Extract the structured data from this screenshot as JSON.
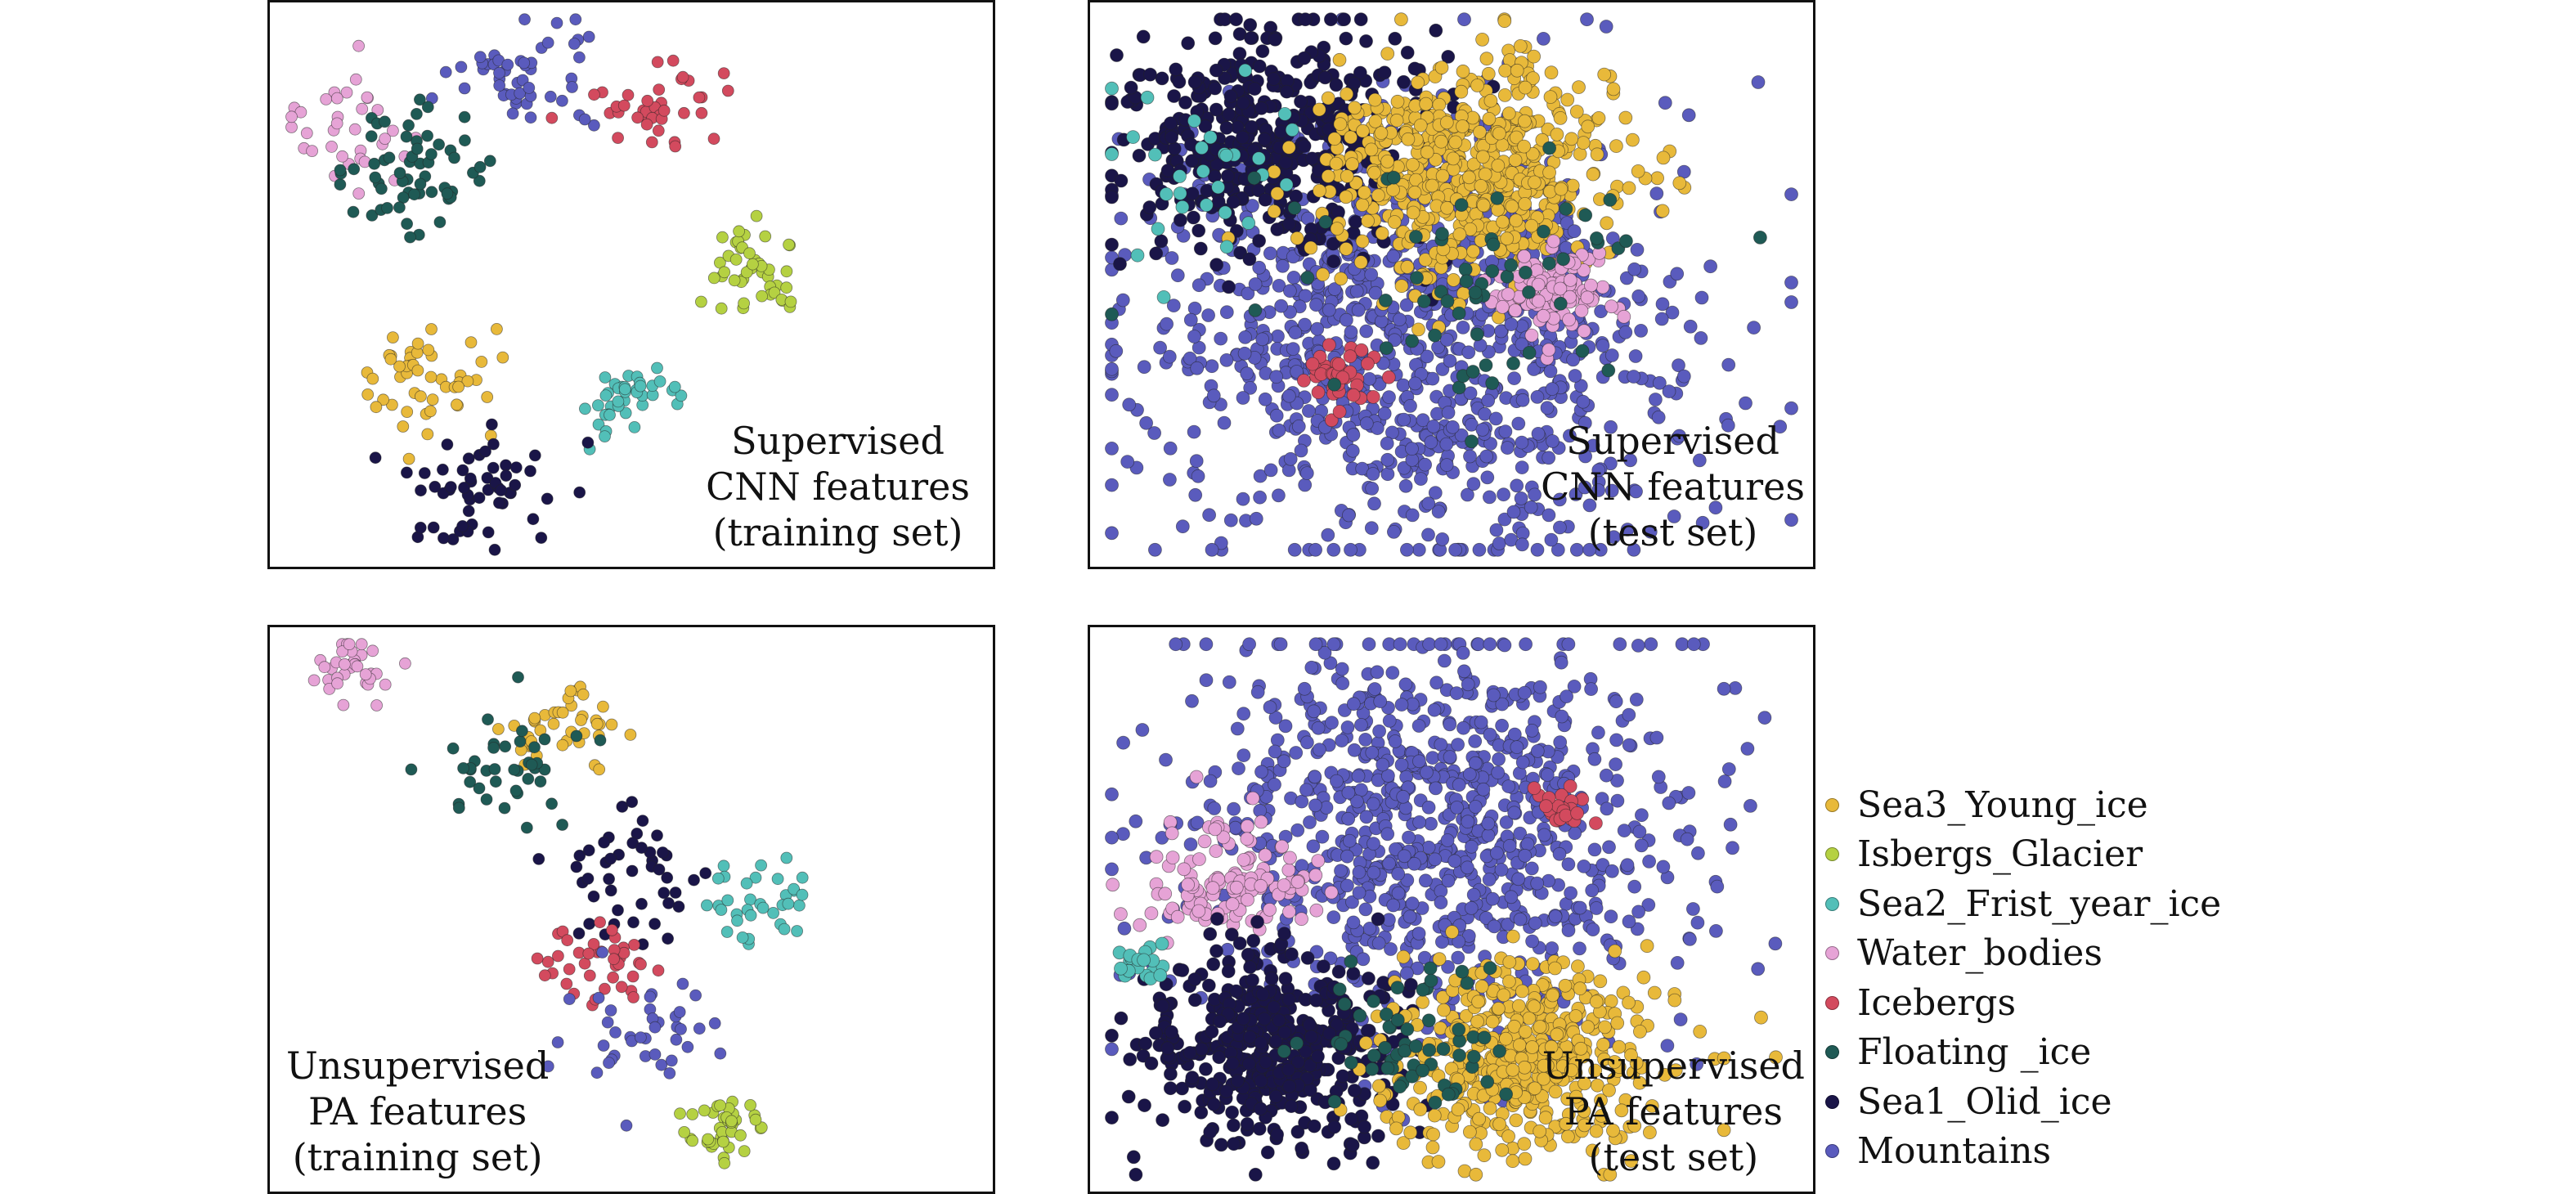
{
  "colors": {
    "Sea3_Young_ice": "#e8b93a",
    "Isbergs_Glacier": "#b5d142",
    "Sea2_Frist_year_ice": "#52bfb8",
    "Water_bodies": "#e6a3d6",
    "Icebergs": "#d34a5e",
    "Floating_ice": "#1f5a55",
    "Sea1_Olid_ice": "#1a1548",
    "Mountains": "#5a5bbd"
  },
  "legend": [
    {
      "key": "Sea3_Young_ice",
      "label": "Sea3_Young_ice"
    },
    {
      "key": "Isbergs_Glacier",
      "label": "Isbergs_Glacier"
    },
    {
      "key": "Sea2_Frist_year_ice",
      "label": "Sea2_Frist_year_ice"
    },
    {
      "key": "Water_bodies",
      "label": "Water_bodies"
    },
    {
      "key": "Icebergs",
      "label": "Icebergs"
    },
    {
      "key": "Floating_ice",
      "label": "Floating _ice"
    },
    {
      "key": "Sea1_Olid_ice",
      "label": "Sea1_Olid_ice"
    },
    {
      "key": "Mountains",
      "label": "Mountains"
    }
  ],
  "chart_data": [
    {
      "type": "scatter",
      "caption": [
        "Supervised",
        "CNN features",
        "(training set)"
      ],
      "clusters": [
        {
          "class": "Mountains",
          "cx": 0.35,
          "cy": 0.14,
          "spread": 0.05,
          "n": 50
        },
        {
          "class": "Icebergs",
          "cx": 0.53,
          "cy": 0.19,
          "spread": 0.04,
          "n": 40
        },
        {
          "class": "Water_bodies",
          "cx": 0.1,
          "cy": 0.23,
          "spread": 0.05,
          "n": 35
        },
        {
          "class": "Floating_ice",
          "cx": 0.2,
          "cy": 0.3,
          "spread": 0.05,
          "n": 60
        },
        {
          "class": "Isbergs_Glacier",
          "cx": 0.67,
          "cy": 0.47,
          "spread": 0.04,
          "n": 45
        },
        {
          "class": "Sea3_Young_ice",
          "cx": 0.22,
          "cy": 0.66,
          "spread": 0.05,
          "n": 50
        },
        {
          "class": "Sea2_Frist_year_ice",
          "cx": 0.5,
          "cy": 0.71,
          "spread": 0.03,
          "n": 40
        },
        {
          "class": "Sea1_Olid_ice",
          "cx": 0.29,
          "cy": 0.87,
          "spread": 0.05,
          "n": 55
        }
      ]
    },
    {
      "type": "scatter",
      "caption": [
        "Supervised",
        "CNN features",
        "(test set)"
      ],
      "clusters": [
        {
          "class": "Mountains",
          "cx": 0.45,
          "cy": 0.6,
          "spread": 0.19,
          "n": 1000
        },
        {
          "class": "Sea1_Olid_ice",
          "cx": 0.25,
          "cy": 0.24,
          "spread": 0.11,
          "n": 450
        },
        {
          "class": "Sea3_Young_ice",
          "cx": 0.52,
          "cy": 0.3,
          "spread": 0.1,
          "n": 600
        },
        {
          "class": "Water_bodies",
          "cx": 0.65,
          "cy": 0.51,
          "spread": 0.04,
          "n": 110
        },
        {
          "class": "Icebergs",
          "cx": 0.35,
          "cy": 0.66,
          "spread": 0.03,
          "n": 40
        },
        {
          "class": "Sea2_Frist_year_ice",
          "cx": 0.15,
          "cy": 0.3,
          "spread": 0.08,
          "n": 30
        },
        {
          "class": "Floating_ice",
          "cx": 0.5,
          "cy": 0.5,
          "spread": 0.12,
          "n": 60
        }
      ]
    },
    {
      "type": "scatter",
      "caption": [
        "Unsupervised",
        "PA features",
        "(training set)"
      ],
      "clusters": [
        {
          "class": "Water_bodies",
          "cx": 0.12,
          "cy": 0.08,
          "spread": 0.03,
          "n": 35
        },
        {
          "class": "Sea3_Young_ice",
          "cx": 0.41,
          "cy": 0.17,
          "spread": 0.04,
          "n": 40
        },
        {
          "class": "Floating_ice",
          "cx": 0.33,
          "cy": 0.25,
          "spread": 0.05,
          "n": 40
        },
        {
          "class": "Sea1_Olid_ice",
          "cx": 0.5,
          "cy": 0.44,
          "spread": 0.06,
          "n": 45
        },
        {
          "class": "Sea2_Frist_year_ice",
          "cx": 0.68,
          "cy": 0.49,
          "spread": 0.04,
          "n": 35
        },
        {
          "class": "Icebergs",
          "cx": 0.46,
          "cy": 0.6,
          "spread": 0.04,
          "n": 40
        },
        {
          "class": "Mountains",
          "cx": 0.52,
          "cy": 0.71,
          "spread": 0.05,
          "n": 40
        },
        {
          "class": "Isbergs_Glacier",
          "cx": 0.63,
          "cy": 0.89,
          "spread": 0.03,
          "n": 40
        }
      ]
    },
    {
      "type": "scatter",
      "caption": [
        "Unsupervised",
        "PA features",
        "(test set)"
      ],
      "clusters": [
        {
          "class": "Mountains",
          "cx": 0.47,
          "cy": 0.36,
          "spread": 0.18,
          "n": 900
        },
        {
          "class": "Water_bodies",
          "cx": 0.2,
          "cy": 0.45,
          "spread": 0.06,
          "n": 120
        },
        {
          "class": "Icebergs",
          "cx": 0.65,
          "cy": 0.32,
          "spread": 0.02,
          "n": 25
        },
        {
          "class": "Sea1_Olid_ice",
          "cx": 0.25,
          "cy": 0.74,
          "spread": 0.09,
          "n": 450
        },
        {
          "class": "Sea3_Young_ice",
          "cx": 0.6,
          "cy": 0.76,
          "spread": 0.09,
          "n": 450
        },
        {
          "class": "Sea2_Frist_year_ice",
          "cx": 0.08,
          "cy": 0.6,
          "spread": 0.02,
          "n": 20
        },
        {
          "class": "Floating_ice",
          "cx": 0.45,
          "cy": 0.72,
          "spread": 0.07,
          "n": 60
        }
      ]
    }
  ]
}
